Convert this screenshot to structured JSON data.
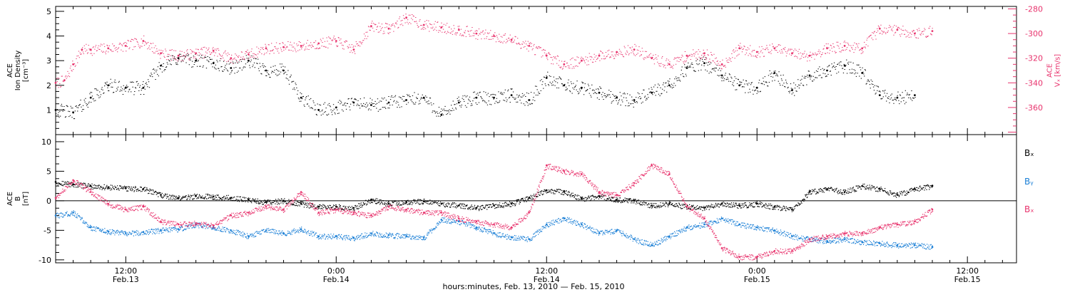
{
  "colors": {
    "black": "#000000",
    "pink": "#e8336d",
    "blue": "#1a7fd6"
  },
  "footer": {
    "xlabel": "hours:minutes, Feb. 13, 2010 — Feb. 15, 2010"
  },
  "x_ticks": [
    {
      "time": "12:00",
      "date": "Feb.13",
      "hour": 12
    },
    {
      "time": "0:00",
      "date": "Feb.14",
      "hour": 24
    },
    {
      "time": "12:00",
      "date": "Feb.14",
      "hour": 36
    },
    {
      "time": "0:00",
      "date": "Feb.15",
      "hour": 48
    },
    {
      "time": "12:00",
      "date": "Feb.15",
      "hour": 60
    }
  ],
  "chart_data": [
    {
      "type": "scatter",
      "xlim": [
        8.0,
        62.8
      ],
      "x_unit": "hours from 2010-02-13 00:00",
      "left_axis": {
        "label_lines": [
          "ACE",
          "Ion Density",
          "[cm⁻³]"
        ],
        "ylim": [
          0,
          5.2
        ],
        "ticks": [
          1,
          2,
          3,
          4,
          5
        ]
      },
      "right_axis": {
        "label_lines": [
          "ACE",
          "Vₓ [km/s]"
        ],
        "ylim": [
          -382,
          -278
        ],
        "ticks": [
          -280,
          -300,
          -320,
          -340,
          -360
        ]
      },
      "series": [
        {
          "axis": "left",
          "color": "#000000",
          "points": [
            [
              8.0,
              1.0
            ],
            [
              9.0,
              0.9
            ],
            [
              10.0,
              1.5
            ],
            [
              11.0,
              2.0
            ],
            [
              12.0,
              1.9
            ],
            [
              13.0,
              1.9
            ],
            [
              14.0,
              2.8
            ],
            [
              15.0,
              3.1
            ],
            [
              16.0,
              3.0
            ],
            [
              17.0,
              2.9
            ],
            [
              18.0,
              2.7
            ],
            [
              19.0,
              3.0
            ],
            [
              20.0,
              2.6
            ],
            [
              21.0,
              2.6
            ],
            [
              22.0,
              1.5
            ],
            [
              23.0,
              1.0
            ],
            [
              24.0,
              1.1
            ],
            [
              25.0,
              1.3
            ],
            [
              26.0,
              1.2
            ],
            [
              27.0,
              1.3
            ],
            [
              28.0,
              1.4
            ],
            [
              29.0,
              1.5
            ],
            [
              30.0,
              0.8
            ],
            [
              31.0,
              1.3
            ],
            [
              32.0,
              1.5
            ],
            [
              33.0,
              1.5
            ],
            [
              34.0,
              1.6
            ],
            [
              35.0,
              1.4
            ],
            [
              36.0,
              2.3
            ],
            [
              37.0,
              2.0
            ],
            [
              38.0,
              1.9
            ],
            [
              39.0,
              1.7
            ],
            [
              40.0,
              1.5
            ],
            [
              41.0,
              1.4
            ],
            [
              42.0,
              1.7
            ],
            [
              43.0,
              2.0
            ],
            [
              44.0,
              2.7
            ],
            [
              45.0,
              2.9
            ],
            [
              46.0,
              2.4
            ],
            [
              47.0,
              2.0
            ],
            [
              48.0,
              1.9
            ],
            [
              49.0,
              2.5
            ],
            [
              50.0,
              1.8
            ],
            [
              51.0,
              2.4
            ],
            [
              52.0,
              2.6
            ],
            [
              53.0,
              2.8
            ],
            [
              54.0,
              2.5
            ],
            [
              55.0,
              1.6
            ],
            [
              56.0,
              1.5
            ],
            [
              57.0,
              1.6
            ]
          ]
        },
        {
          "axis": "right",
          "color": "#e8336d",
          "points": [
            [
              8.0,
              -340
            ],
            [
              8.5,
              -338
            ],
            [
              9.0,
              -325
            ],
            [
              9.5,
              -313
            ],
            [
              10.0,
              -313
            ],
            [
              11.0,
              -312
            ],
            [
              12.0,
              -310
            ],
            [
              13.0,
              -306
            ],
            [
              14.0,
              -316
            ],
            [
              15.0,
              -318
            ],
            [
              16.0,
              -316
            ],
            [
              17.0,
              -314
            ],
            [
              18.0,
              -320
            ],
            [
              19.0,
              -317
            ],
            [
              20.0,
              -312
            ],
            [
              21.0,
              -311
            ],
            [
              22.0,
              -310
            ],
            [
              23.0,
              -308
            ],
            [
              24.0,
              -306
            ],
            [
              25.0,
              -313
            ],
            [
              26.0,
              -294
            ],
            [
              27.0,
              -296
            ],
            [
              28.0,
              -287
            ],
            [
              29.0,
              -293
            ],
            [
              30.0,
              -295
            ],
            [
              31.0,
              -297
            ],
            [
              32.0,
              -300
            ],
            [
              33.0,
              -302
            ],
            [
              34.0,
              -305
            ],
            [
              35.0,
              -310
            ],
            [
              36.0,
              -318
            ],
            [
              37.0,
              -325
            ],
            [
              38.0,
              -322
            ],
            [
              39.0,
              -318
            ],
            [
              40.0,
              -315
            ],
            [
              41.0,
              -313
            ],
            [
              42.0,
              -320
            ],
            [
              43.0,
              -325
            ],
            [
              44.0,
              -318
            ],
            [
              45.0,
              -316
            ],
            [
              46.0,
              -325
            ],
            [
              47.0,
              -312
            ],
            [
              48.0,
              -315
            ],
            [
              49.0,
              -312
            ],
            [
              50.0,
              -316
            ],
            [
              51.0,
              -318
            ],
            [
              52.0,
              -312
            ],
            [
              53.0,
              -310
            ],
            [
              54.0,
              -312
            ],
            [
              55.0,
              -296
            ],
            [
              56.0,
              -297
            ],
            [
              57.0,
              -300
            ],
            [
              58.0,
              -298
            ]
          ]
        }
      ]
    },
    {
      "type": "scatter",
      "xlim": [
        8.0,
        62.8
      ],
      "x_unit": "hours from 2010-02-13 00:00",
      "left_axis": {
        "label_lines": [
          "ACE",
          "B",
          "[nT]"
        ],
        "ylim": [
          -10.5,
          11.2
        ],
        "ticks": [
          10,
          5,
          0,
          -5,
          -10
        ]
      },
      "reference_line": 0,
      "legend_position": "right",
      "series": [
        {
          "name": "Bₓ",
          "color": "#000000",
          "points": [
            [
              8.0,
              3.2
            ],
            [
              9.0,
              2.8
            ],
            [
              10.0,
              2.5
            ],
            [
              11.0,
              2.3
            ],
            [
              12.0,
              2.1
            ],
            [
              13.0,
              2.0
            ],
            [
              14.0,
              1.0
            ],
            [
              15.0,
              0.5
            ],
            [
              16.0,
              0.8
            ],
            [
              17.0,
              0.7
            ],
            [
              18.0,
              0.5
            ],
            [
              19.0,
              0.2
            ],
            [
              20.0,
              -0.2
            ],
            [
              21.0,
              0.0
            ],
            [
              22.0,
              -0.5
            ],
            [
              23.0,
              -1.0
            ],
            [
              24.0,
              -1.0
            ],
            [
              25.0,
              -1.2
            ],
            [
              26.0,
              0.2
            ],
            [
              27.0,
              -0.5
            ],
            [
              28.0,
              -0.2
            ],
            [
              29.0,
              -0.1
            ],
            [
              30.0,
              -0.5
            ],
            [
              31.0,
              -0.8
            ],
            [
              32.0,
              -1.2
            ],
            [
              33.0,
              -0.8
            ],
            [
              34.0,
              -0.5
            ],
            [
              35.0,
              0.5
            ],
            [
              36.0,
              1.8
            ],
            [
              37.0,
              1.5
            ],
            [
              38.0,
              0.3
            ],
            [
              39.0,
              0.8
            ],
            [
              40.0,
              0.2
            ],
            [
              41.0,
              0.0
            ],
            [
              42.0,
              -0.8
            ],
            [
              43.0,
              -0.5
            ],
            [
              44.0,
              -1.0
            ],
            [
              45.0,
              -1.2
            ],
            [
              46.0,
              -0.5
            ],
            [
              47.0,
              -0.8
            ],
            [
              48.0,
              -0.5
            ],
            [
              49.0,
              -1.0
            ],
            [
              50.0,
              -1.5
            ],
            [
              51.0,
              1.5
            ],
            [
              52.0,
              2.0
            ],
            [
              53.0,
              1.5
            ],
            [
              54.0,
              2.5
            ],
            [
              55.0,
              2.0
            ],
            [
              56.0,
              1.0
            ],
            [
              57.0,
              2.0
            ],
            [
              58.0,
              2.5
            ]
          ]
        },
        {
          "name": "Bᵧ",
          "color": "#1a7fd6",
          "points": [
            [
              8.0,
              -2.5
            ],
            [
              9.0,
              -2.0
            ],
            [
              10.0,
              -4.5
            ],
            [
              11.0,
              -5.2
            ],
            [
              12.0,
              -5.5
            ],
            [
              13.0,
              -5.3
            ],
            [
              14.0,
              -5.0
            ],
            [
              15.0,
              -4.8
            ],
            [
              16.0,
              -4.0
            ],
            [
              17.0,
              -4.5
            ],
            [
              18.0,
              -5.0
            ],
            [
              19.0,
              -6.0
            ],
            [
              20.0,
              -5.0
            ],
            [
              21.0,
              -5.5
            ],
            [
              22.0,
              -4.8
            ],
            [
              23.0,
              -6.0
            ],
            [
              24.0,
              -6.0
            ],
            [
              25.0,
              -6.3
            ],
            [
              26.0,
              -5.5
            ],
            [
              27.0,
              -5.8
            ],
            [
              28.0,
              -6.0
            ],
            [
              29.0,
              -6.2
            ],
            [
              30.0,
              -3.2
            ],
            [
              31.0,
              -3.5
            ],
            [
              32.0,
              -4.5
            ],
            [
              33.0,
              -5.5
            ],
            [
              34.0,
              -6.2
            ],
            [
              35.0,
              -6.5
            ],
            [
              36.0,
              -4.0
            ],
            [
              37.0,
              -3.0
            ],
            [
              38.0,
              -4.0
            ],
            [
              39.0,
              -5.5
            ],
            [
              40.0,
              -5.0
            ],
            [
              41.0,
              -6.5
            ],
            [
              42.0,
              -7.5
            ],
            [
              43.0,
              -6.0
            ],
            [
              44.0,
              -4.5
            ],
            [
              45.0,
              -4.0
            ],
            [
              46.0,
              -3.0
            ],
            [
              47.0,
              -4.0
            ],
            [
              48.0,
              -4.5
            ],
            [
              49.0,
              -5.0
            ],
            [
              50.0,
              -6.0
            ],
            [
              51.0,
              -6.5
            ],
            [
              52.0,
              -6.8
            ],
            [
              53.0,
              -6.5
            ],
            [
              54.0,
              -7.0
            ],
            [
              55.0,
              -7.2
            ],
            [
              56.0,
              -7.5
            ],
            [
              57.0,
              -7.5
            ],
            [
              58.0,
              -7.8
            ]
          ]
        },
        {
          "name": "Bₓ",
          "color": "#e8336d",
          "points": [
            [
              8.0,
              0.5
            ],
            [
              9.0,
              3.5
            ],
            [
              10.0,
              1.5
            ],
            [
              11.0,
              -0.5
            ],
            [
              12.0,
              -1.5
            ],
            [
              13.0,
              -1.0
            ],
            [
              14.0,
              -3.5
            ],
            [
              15.0,
              -4.0
            ],
            [
              16.0,
              -3.8
            ],
            [
              17.0,
              -4.2
            ],
            [
              18.0,
              -2.5
            ],
            [
              19.0,
              -2.0
            ],
            [
              20.0,
              -1.0
            ],
            [
              21.0,
              -1.5
            ],
            [
              22.0,
              1.5
            ],
            [
              23.0,
              -2.0
            ],
            [
              24.0,
              -1.5
            ],
            [
              25.0,
              -2.0
            ],
            [
              26.0,
              -2.5
            ],
            [
              27.0,
              -1.0
            ],
            [
              28.0,
              -1.5
            ],
            [
              29.0,
              -2.0
            ],
            [
              30.0,
              -2.0
            ],
            [
              31.0,
              -3.0
            ],
            [
              32.0,
              -3.5
            ],
            [
              33.0,
              -4.0
            ],
            [
              34.0,
              -4.5
            ],
            [
              35.0,
              -2.0
            ],
            [
              36.0,
              6.0
            ],
            [
              37.0,
              5.0
            ],
            [
              38.0,
              4.5
            ],
            [
              39.0,
              1.5
            ],
            [
              40.0,
              1.0
            ],
            [
              41.0,
              3.0
            ],
            [
              42.0,
              6.0
            ],
            [
              43.0,
              4.5
            ],
            [
              44.0,
              -1.0
            ],
            [
              45.0,
              -3.0
            ],
            [
              46.0,
              -8.0
            ],
            [
              47.0,
              -9.5
            ],
            [
              48.0,
              -9.5
            ],
            [
              49.0,
              -8.5
            ],
            [
              50.0,
              -8.5
            ],
            [
              51.0,
              -6.5
            ],
            [
              52.0,
              -6.0
            ],
            [
              53.0,
              -5.5
            ],
            [
              54.0,
              -5.5
            ],
            [
              55.0,
              -4.5
            ],
            [
              56.0,
              -4.0
            ],
            [
              57.0,
              -3.5
            ],
            [
              58.0,
              -1.5
            ]
          ]
        }
      ]
    }
  ]
}
